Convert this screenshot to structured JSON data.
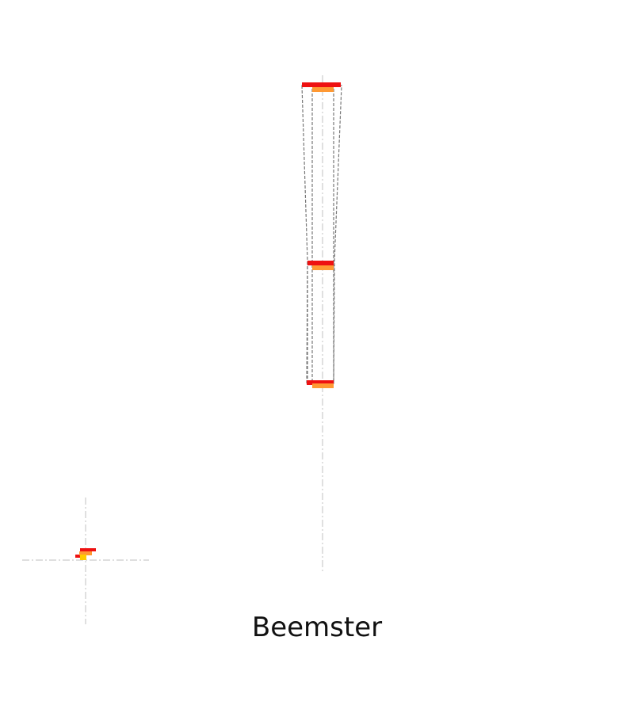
{
  "caption": "Beemster",
  "colors": {
    "background": "#ffffff",
    "guide_line": "#cccccc",
    "outline": "#777777",
    "red_bar": "#ee1111",
    "orange_bar": "#ff9933",
    "yellow_fill": "#ffcc00",
    "text": "#111111"
  }
}
